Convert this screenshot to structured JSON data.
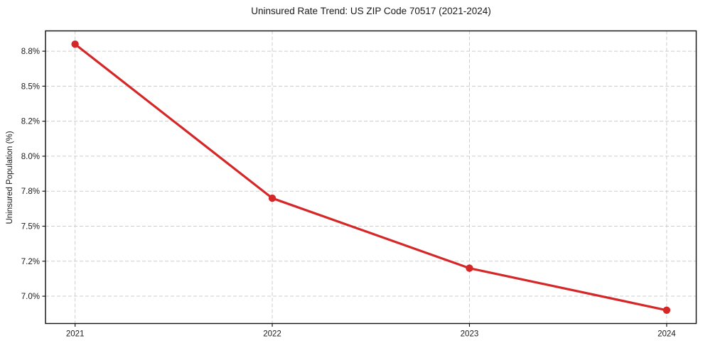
{
  "figure": {
    "background_color": "#ffffff"
  },
  "chart_data": {
    "type": "line",
    "title": "Uninsured Rate Trend: US ZIP Code 70517 (2021-2024)",
    "xlabel": "",
    "ylabel": "Uninsured Population (%)",
    "x": [
      2021,
      2022,
      2023,
      2024
    ],
    "values": [
      8.8,
      7.7,
      7.2,
      6.9
    ],
    "xlim": [
      2020.85,
      2024.15
    ],
    "ylim": [
      6.805,
      8.895
    ],
    "xticks": [
      2021,
      2022,
      2023,
      2024
    ],
    "xtick_labels": [
      "2021",
      "2022",
      "2023",
      "2024"
    ],
    "yticks": [
      7.0,
      7.25,
      7.5,
      7.75,
      8.0,
      8.25,
      8.5,
      8.75
    ],
    "ytick_labels": [
      "7.0%",
      "7.2%",
      "7.5%",
      "7.8%",
      "8.0%",
      "8.2%",
      "8.5%",
      "8.8%"
    ],
    "line_color": "#d62728",
    "grid": true,
    "grid_color": "#cccccc",
    "grid_style": "dashed",
    "marker": "circle",
    "legend": "none"
  }
}
